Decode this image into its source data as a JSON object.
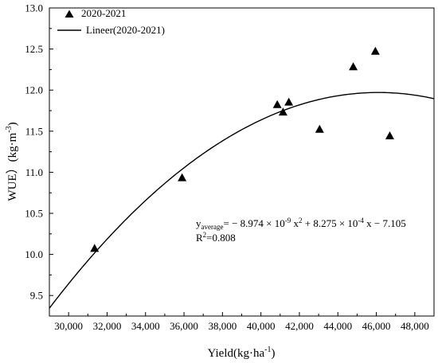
{
  "chart_data": {
    "type": "scatter",
    "title": "",
    "xlabel_main": "Yield(kg·ha",
    "xlabel_sup": "-1",
    "xlabel_end": ")",
    "ylabel_main": "WUE）(kg·m",
    "ylabel_sup": "-3",
    "ylabel_end": ")",
    "xlim": [
      29000,
      49000
    ],
    "ylim": [
      9.25,
      13.0
    ],
    "x_ticks": [
      30000,
      32000,
      34000,
      36000,
      38000,
      40000,
      42000,
      44000,
      46000,
      48000
    ],
    "x_tick_labels": [
      "30,000",
      "32,000",
      "34,000",
      "36,000",
      "38,000",
      "40,000",
      "42,000",
      "44,000",
      "46,000",
      "48,000"
    ],
    "y_ticks": [
      9.5,
      10.0,
      10.5,
      11.0,
      11.5,
      12.0,
      12.5,
      13.0
    ],
    "y_tick_labels": [
      "9.5",
      "10.0",
      "10.5",
      "11.0",
      "11.5",
      "12.0",
      "12.5",
      "13.0"
    ],
    "legend_position": "top-left",
    "series": [
      {
        "name": "2020-2021",
        "kind": "scatter",
        "marker": "triangle",
        "x": [
          31350,
          35900,
          40850,
          41150,
          41450,
          43050,
          44800,
          45950,
          46700
        ],
        "y": [
          10.07,
          10.93,
          11.82,
          11.73,
          11.85,
          11.52,
          12.28,
          12.47,
          11.44
        ]
      },
      {
        "name": "Lineer(2020-2021)",
        "kind": "fit",
        "coefficients": {
          "a": -8.974e-09,
          "b": 0.0008275,
          "c": -7.105
        }
      }
    ],
    "annotation": {
      "lhs": "y",
      "lhs_sub": "average",
      "rhs_1": "= − 8.974 × 10",
      "rhs_1_sup": "-9",
      "rhs_2": " x",
      "rhs_2_sup": "2",
      "rhs_3": " + 8.275 × 10",
      "rhs_3_sup": "-4",
      "rhs_4": " x − 7.105",
      "r2_lhs": "R",
      "r2_sup": "2",
      "r2_rhs": "=0.808"
    }
  }
}
